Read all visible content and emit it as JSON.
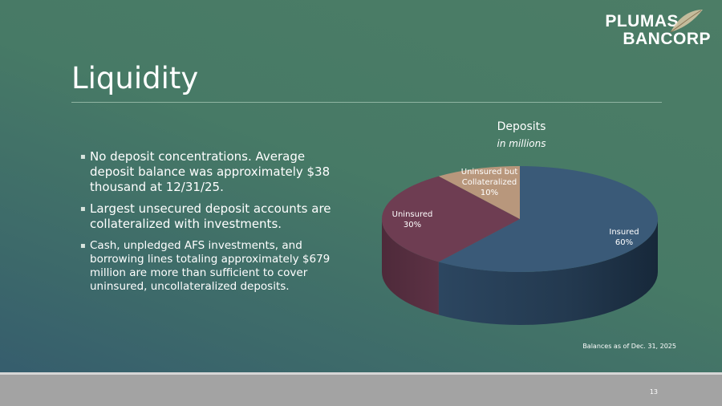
{
  "logo": {
    "line1": "PLUMAS",
    "line2": "BANCORP"
  },
  "title": "Liquidity",
  "bullets": [
    "No deposit concentrations. Average deposit balance was approximately $38 thousand at 12/31/25.",
    "Largest unsecured deposit accounts are collateralized with investments.",
    "Cash, unpledged AFS investments, and borrowing lines totaling approximately $679 million are more than sufficient to cover uninsured, uncollateralized deposits."
  ],
  "chart_data": {
    "type": "pie",
    "title": "Deposits",
    "subtitle": "in millions",
    "style": "3d",
    "slices": [
      {
        "name": "Insured",
        "label": "60%",
        "value": 60,
        "color": "#3a5a78"
      },
      {
        "name": "Uninsured",
        "label": "30%",
        "value": 30,
        "color": "#6e3d52"
      },
      {
        "name": "Uninsured but Collateralized",
        "label": "10%",
        "value": 10,
        "color": "#b8977c"
      }
    ]
  },
  "footnote": "Balances as of Dec. 31, 2025",
  "page_number": "13"
}
